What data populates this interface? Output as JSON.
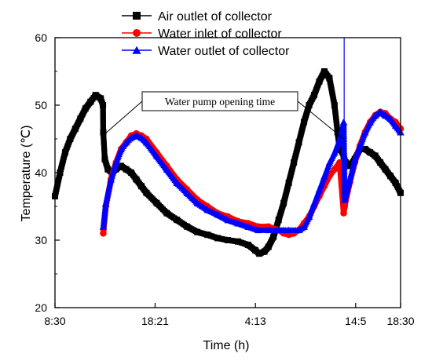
{
  "chart_data": {
    "type": "line",
    "title": "",
    "xlabel": "Time (h)",
    "ylabel": "Temperature (℃)",
    "x_tick_labels": [
      "8:30",
      "18:21",
      "4:13",
      "14:5",
      "18:30"
    ],
    "y_tick_labels": [
      "20",
      "30",
      "40",
      "50",
      "60"
    ],
    "xlim": [
      0,
      34
    ],
    "ylim": [
      20,
      60
    ],
    "x_ticks": [
      0,
      9.85,
      19.72,
      29.58,
      34
    ],
    "y_ticks": [
      20,
      30,
      40,
      50,
      60
    ],
    "legend_position": "top-right",
    "grid": false,
    "annotation": "Water pump opening time",
    "annotation_targets": [
      {
        "x": 4.72,
        "y": 45.5
      },
      {
        "x": 28.4,
        "y": 45
      }
    ],
    "series": [
      {
        "name": "Air outlet of collector",
        "color": "#000000",
        "marker": "square",
        "x": [
          0,
          0.5,
          1,
          1.5,
          2,
          2.5,
          3,
          3.5,
          4,
          4.5,
          4.72,
          4.75,
          4.9,
          5.2,
          5.6,
          6,
          6.5,
          7,
          7.5,
          8,
          8.5,
          9,
          10,
          11,
          12,
          13,
          14,
          15,
          16,
          17,
          18,
          19,
          19.7,
          20.1,
          20.6,
          21,
          21.5,
          22,
          22.5,
          23,
          23.5,
          24,
          24.5,
          25,
          25.5,
          26,
          26.5,
          27,
          27.5,
          27.8,
          28,
          28.3,
          28.4,
          28.45,
          28.6,
          29,
          29.5,
          30,
          30.5,
          31,
          31.5,
          32,
          32.5,
          33,
          33.5,
          34
        ],
        "y": [
          36.5,
          40,
          43,
          45,
          46.5,
          48,
          49.5,
          50.5,
          51.5,
          51,
          50,
          46,
          42,
          40.5,
          40,
          40.5,
          41,
          40.5,
          40,
          39,
          38,
          37,
          35.5,
          34,
          33,
          32,
          31.2,
          30.8,
          30.3,
          30,
          29.8,
          29.3,
          28.5,
          28,
          28.3,
          29,
          30.5,
          33,
          35.5,
          38.5,
          41.5,
          44.5,
          47.5,
          50,
          51.5,
          53.5,
          55,
          54,
          50,
          46,
          43.5,
          43,
          42.5,
          42,
          41.5,
          41,
          42,
          43.5,
          43.5,
          43,
          42.5,
          41.5,
          40.5,
          39.5,
          38.5,
          37
        ]
      },
      {
        "name": "Water inlet of collector",
        "color": "#ff0000",
        "marker": "circle",
        "x": [
          4.75,
          5,
          5.5,
          6,
          6.5,
          7,
          7.5,
          8,
          8.5,
          9,
          10,
          11,
          12,
          13,
          14,
          15,
          16,
          17,
          18,
          19,
          20,
          21,
          22,
          22.5,
          23,
          23.5,
          24,
          24.5,
          25,
          25.5,
          26,
          26.5,
          27,
          27.5,
          28,
          28.4,
          28.5,
          29,
          29.5,
          30,
          30.5,
          31,
          31.5,
          32,
          32.5,
          33,
          33.5,
          34
        ],
        "y": [
          31,
          35,
          39,
          41.5,
          43.5,
          44.5,
          45.5,
          45.8,
          45.5,
          45,
          43,
          41,
          39,
          37.5,
          36,
          35,
          34,
          33.5,
          32.8,
          32.5,
          32,
          32,
          31.5,
          31,
          30.8,
          31,
          31.5,
          32.5,
          33.5,
          35,
          36.5,
          38,
          39.5,
          40.5,
          41.5,
          34,
          35,
          38.5,
          41.5,
          44,
          46,
          47.5,
          48.5,
          49,
          48.8,
          48,
          47.5,
          46.5
        ]
      },
      {
        "name": "Water outlet of collector",
        "color": "#0000ff",
        "marker": "triangle",
        "x": [
          4.75,
          5,
          5.5,
          6,
          6.5,
          7,
          7.5,
          8,
          8.5,
          9,
          10,
          11,
          12,
          13,
          14,
          15,
          16,
          17,
          18,
          19,
          20,
          21,
          22,
          22.5,
          23,
          24,
          24.5,
          25,
          25.5,
          26,
          26.5,
          27,
          27.5,
          28,
          28.4,
          28.5,
          29,
          29.5,
          30,
          30.5,
          31,
          31.5,
          32,
          32.5,
          33,
          33.5,
          34
        ],
        "y": [
          32,
          35.5,
          39,
          41.5,
          43.5,
          44.5,
          45.2,
          45.5,
          45.2,
          44.5,
          42.5,
          40.5,
          38.5,
          37,
          35.5,
          34.5,
          33.8,
          33,
          32.5,
          32,
          31.5,
          31.5,
          31.5,
          31.5,
          31.5,
          31.5,
          32,
          33.5,
          35.5,
          37.5,
          39.5,
          41.5,
          43,
          45,
          47.5,
          36,
          39,
          42,
          44,
          46,
          47.5,
          48.5,
          49,
          48.5,
          48,
          47,
          46
        ]
      }
    ]
  }
}
